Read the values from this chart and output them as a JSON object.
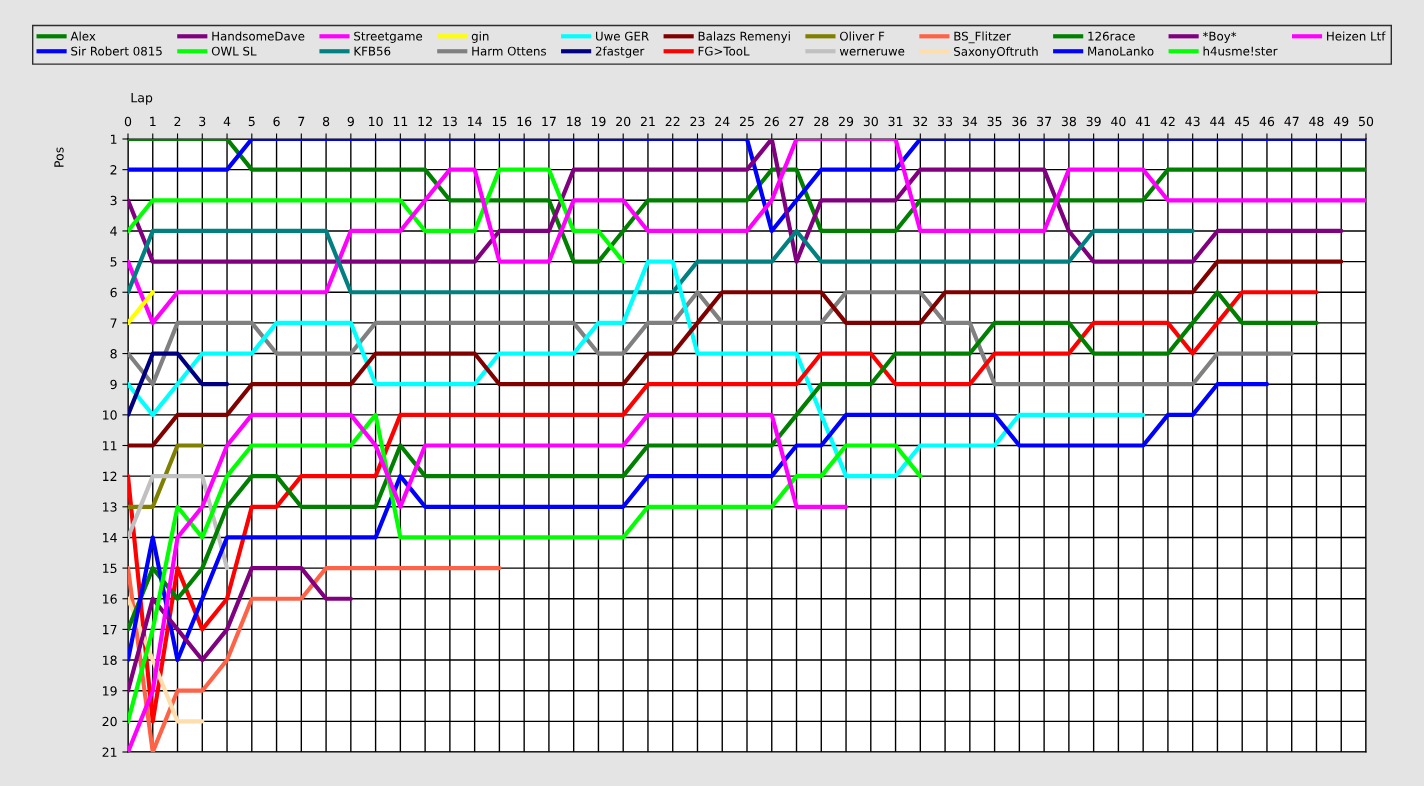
{
  "chart_data": {
    "type": "line",
    "xlabel": "Lap",
    "ylabel": "Pos",
    "x": [
      0,
      1,
      2,
      3,
      4,
      5,
      6,
      7,
      8,
      9,
      10,
      11,
      12,
      13,
      14,
      15,
      16,
      17,
      18,
      19,
      20,
      21,
      22,
      23,
      24,
      25,
      26,
      27,
      28,
      29,
      30,
      31,
      32,
      33,
      34,
      35,
      36,
      37,
      38,
      39,
      40,
      41,
      42,
      43,
      44,
      45,
      46,
      47,
      48,
      49,
      50
    ],
    "xlim": [
      0,
      50
    ],
    "xticks": [
      0,
      1,
      2,
      3,
      4,
      5,
      6,
      7,
      8,
      9,
      10,
      11,
      12,
      13,
      14,
      15,
      16,
      17,
      18,
      19,
      20,
      21,
      22,
      23,
      24,
      25,
      26,
      27,
      28,
      29,
      30,
      31,
      32,
      33,
      34,
      35,
      36,
      37,
      38,
      39,
      40,
      41,
      42,
      43,
      44,
      45,
      46,
      47,
      48,
      49,
      50
    ],
    "ylim": [
      21,
      1
    ],
    "yticks": [
      1,
      2,
      3,
      4,
      5,
      6,
      7,
      8,
      9,
      10,
      11,
      12,
      13,
      14,
      15,
      16,
      17,
      18,
      19,
      20,
      21
    ],
    "grid": true,
    "legend": "top",
    "marker": "none",
    "line_style": "solid",
    "series": [
      {
        "name": "Alex",
        "color": "#008000",
        "values": [
          1,
          1,
          1,
          1,
          1,
          2,
          2,
          2,
          2,
          2,
          2,
          2,
          2,
          3,
          3,
          3,
          3,
          3,
          5,
          5,
          4,
          3,
          3,
          3,
          3,
          3,
          2,
          2,
          4,
          4,
          4,
          4,
          3,
          3,
          3,
          3,
          3,
          3,
          3,
          3,
          3,
          3,
          2,
          2,
          2,
          2,
          2,
          2,
          2,
          2,
          2
        ]
      },
      {
        "name": "Sir Robert 0815",
        "color": "#0000ff",
        "values": [
          2,
          2,
          2,
          2,
          2,
          1,
          1,
          1,
          1,
          1,
          1,
          1,
          1,
          1,
          1,
          1,
          1,
          1,
          1,
          1,
          1,
          1,
          1,
          1,
          1,
          1,
          4,
          3,
          2,
          2,
          2,
          2,
          1,
          1,
          1,
          1,
          1,
          1,
          1,
          1,
          1,
          1,
          1,
          1,
          1,
          1,
          1,
          1,
          1,
          1,
          1
        ]
      },
      {
        "name": "HandsomeDave",
        "color": "#800080",
        "values": [
          3,
          5,
          5,
          5,
          5,
          5,
          5,
          5,
          5,
          5,
          5,
          5,
          5,
          5,
          5,
          4,
          4,
          4,
          2,
          2,
          2,
          2,
          2,
          2,
          2,
          2,
          1,
          5,
          3,
          3,
          3,
          3,
          2,
          2,
          2,
          2,
          2,
          2,
          4,
          5,
          5,
          5,
          5,
          5,
          4,
          4,
          4,
          4,
          4,
          4,
          null
        ]
      },
      {
        "name": "OWL SL",
        "color": "#00ff00",
        "values": [
          4,
          3,
          3,
          3,
          3,
          3,
          3,
          3,
          3,
          3,
          3,
          3,
          4,
          4,
          4,
          2,
          2,
          2,
          4,
          4,
          5,
          null,
          null,
          null,
          null,
          null,
          null,
          null,
          null,
          null,
          null,
          null,
          null,
          null,
          null,
          null,
          null,
          null,
          null,
          null,
          null,
          null,
          null,
          null,
          null,
          null,
          null,
          null,
          null,
          null,
          null
        ]
      },
      {
        "name": "Streetgame",
        "color": "#ff00ff",
        "values": [
          5,
          7,
          6,
          6,
          6,
          6,
          6,
          6,
          6,
          4,
          4,
          4,
          3,
          2,
          2,
          5,
          5,
          5,
          3,
          3,
          3,
          4,
          4,
          4,
          4,
          4,
          3,
          1,
          1,
          1,
          1,
          1,
          4,
          4,
          4,
          4,
          4,
          4,
          2,
          2,
          2,
          2,
          3,
          3,
          3,
          3,
          3,
          3,
          3,
          3,
          3
        ]
      },
      {
        "name": "KFB56",
        "color": "#008080",
        "values": [
          6,
          4,
          4,
          4,
          4,
          4,
          4,
          4,
          4,
          6,
          6,
          6,
          6,
          6,
          6,
          6,
          6,
          6,
          6,
          6,
          6,
          6,
          6,
          5,
          5,
          5,
          5,
          4,
          5,
          5,
          5,
          5,
          5,
          5,
          5,
          5,
          5,
          5,
          5,
          4,
          4,
          4,
          4,
          4,
          null,
          null,
          null,
          null,
          null,
          null,
          null
        ]
      },
      {
        "name": "gin",
        "color": "#ffff00",
        "values": [
          7,
          6,
          null,
          null,
          null,
          null,
          null,
          null,
          null,
          null,
          null,
          null,
          null,
          null,
          null,
          null,
          null,
          null,
          null,
          null,
          null,
          null,
          null,
          null,
          null,
          null,
          null,
          null,
          null,
          null,
          null,
          null,
          null,
          null,
          null,
          null,
          null,
          null,
          null,
          null,
          null,
          null,
          null,
          null,
          null,
          null,
          null,
          null,
          null,
          null,
          null
        ]
      },
      {
        "name": "Harm Ottens",
        "color": "#808080",
        "values": [
          8,
          9,
          7,
          7,
          7,
          7,
          8,
          8,
          8,
          8,
          7,
          7,
          7,
          7,
          7,
          7,
          7,
          7,
          7,
          8,
          8,
          7,
          7,
          6,
          7,
          7,
          7,
          7,
          7,
          6,
          6,
          6,
          6,
          7,
          7,
          9,
          9,
          9,
          9,
          9,
          9,
          9,
          9,
          9,
          8,
          8,
          8,
          8,
          null,
          null,
          null
        ]
      },
      {
        "name": "Uwe GER",
        "color": "#00ffff",
        "values": [
          9,
          10,
          9,
          8,
          8,
          8,
          7,
          7,
          7,
          7,
          9,
          9,
          9,
          9,
          9,
          8,
          8,
          8,
          8,
          7,
          7,
          5,
          5,
          8,
          8,
          8,
          8,
          8,
          10,
          12,
          12,
          12,
          11,
          11,
          11,
          11,
          10,
          10,
          10,
          10,
          10,
          10,
          null,
          null,
          null,
          null,
          null,
          null,
          null,
          null,
          null
        ]
      },
      {
        "name": "2fastger",
        "color": "#000080",
        "values": [
          10,
          8,
          8,
          9,
          9,
          null,
          null,
          null,
          null,
          null,
          null,
          null,
          null,
          null,
          null,
          null,
          null,
          null,
          null,
          null,
          null,
          null,
          null,
          null,
          null,
          null,
          null,
          null,
          null,
          null,
          null,
          null,
          null,
          null,
          null,
          null,
          null,
          null,
          null,
          null,
          null,
          null,
          null,
          null,
          null,
          null,
          null,
          null,
          null,
          null,
          null
        ]
      },
      {
        "name": "Balazs Remenyi",
        "color": "#800000",
        "values": [
          11,
          11,
          10,
          10,
          10,
          9,
          9,
          9,
          9,
          9,
          8,
          8,
          8,
          8,
          8,
          9,
          9,
          9,
          9,
          9,
          9,
          8,
          8,
          7,
          6,
          6,
          6,
          6,
          6,
          7,
          7,
          7,
          7,
          6,
          6,
          6,
          6,
          6,
          6,
          6,
          6,
          6,
          6,
          6,
          5,
          5,
          5,
          5,
          5,
          5,
          null
        ]
      },
      {
        "name": "FG>TooL",
        "color": "#ff0000",
        "values": [
          12,
          20,
          15,
          17,
          16,
          13,
          13,
          12,
          12,
          12,
          12,
          10,
          10,
          10,
          10,
          10,
          10,
          10,
          10,
          10,
          10,
          9,
          9,
          9,
          9,
          9,
          9,
          9,
          8,
          8,
          8,
          9,
          9,
          9,
          9,
          8,
          8,
          8,
          8,
          7,
          7,
          7,
          7,
          8,
          7,
          6,
          6,
          6,
          6,
          null,
          null
        ]
      },
      {
        "name": "Oliver F",
        "color": "#808000",
        "values": [
          13,
          13,
          11,
          11,
          null,
          null,
          null,
          null,
          null,
          null,
          null,
          null,
          null,
          null,
          null,
          null,
          null,
          null,
          null,
          null,
          null,
          null,
          null,
          null,
          null,
          null,
          null,
          null,
          null,
          null,
          null,
          null,
          null,
          null,
          null,
          null,
          null,
          null,
          null,
          null,
          null,
          null,
          null,
          null,
          null,
          null,
          null,
          null,
          null,
          null,
          null
        ]
      },
      {
        "name": "werneruwe",
        "color": "#c0c0c0",
        "values": [
          14,
          12,
          12,
          12,
          15,
          null,
          null,
          null,
          null,
          null,
          null,
          null,
          null,
          null,
          null,
          null,
          null,
          null,
          null,
          null,
          null,
          null,
          null,
          null,
          null,
          null,
          null,
          null,
          null,
          null,
          null,
          null,
          null,
          null,
          null,
          null,
          null,
          null,
          null,
          null,
          null,
          null,
          null,
          null,
          null,
          null,
          null,
          null,
          null,
          null,
          null
        ]
      },
      {
        "name": "BS_Flitzer",
        "color": "#ff6347",
        "values": [
          15,
          21,
          19,
          19,
          18,
          16,
          16,
          16,
          15,
          15,
          15,
          15,
          15,
          15,
          15,
          15,
          null,
          null,
          null,
          null,
          null,
          null,
          null,
          null,
          null,
          null,
          null,
          null,
          null,
          null,
          null,
          null,
          null,
          null,
          null,
          null,
          null,
          null,
          null,
          null,
          null,
          null,
          null,
          null,
          null,
          null,
          null,
          null,
          null,
          null,
          null
        ]
      },
      {
        "name": "SaxonyOftruth",
        "color": "#ffdead",
        "values": [
          16,
          18,
          20,
          20,
          null,
          null,
          null,
          null,
          null,
          null,
          null,
          null,
          null,
          null,
          null,
          null,
          null,
          null,
          null,
          null,
          null,
          null,
          null,
          null,
          null,
          null,
          null,
          null,
          null,
          null,
          null,
          null,
          null,
          null,
          null,
          null,
          null,
          null,
          null,
          null,
          null,
          null,
          null,
          null,
          null,
          null,
          null,
          null,
          null,
          null,
          null
        ]
      },
      {
        "name": "126race",
        "color": "#008000",
        "values": [
          17,
          15,
          16,
          15,
          13,
          12,
          12,
          13,
          13,
          13,
          13,
          11,
          12,
          12,
          12,
          12,
          12,
          12,
          12,
          12,
          12,
          11,
          11,
          11,
          11,
          11,
          11,
          10,
          9,
          9,
          9,
          8,
          8,
          8,
          8,
          7,
          7,
          7,
          7,
          8,
          8,
          8,
          8,
          7,
          6,
          7,
          7,
          7,
          7,
          null,
          null
        ]
      },
      {
        "name": "ManoLanko",
        "color": "#0000ff",
        "values": [
          18,
          14,
          18,
          16,
          14,
          14,
          14,
          14,
          14,
          14,
          14,
          12,
          13,
          13,
          13,
          13,
          13,
          13,
          13,
          13,
          13,
          12,
          12,
          12,
          12,
          12,
          12,
          11,
          11,
          10,
          10,
          10,
          10,
          10,
          10,
          10,
          11,
          11,
          11,
          11,
          11,
          11,
          10,
          10,
          9,
          9,
          9,
          null,
          null,
          null,
          null
        ]
      },
      {
        "name": "*Boy*",
        "color": "#800080",
        "values": [
          19,
          16,
          17,
          18,
          17,
          15,
          15,
          15,
          16,
          16,
          null,
          null,
          null,
          null,
          null,
          null,
          null,
          null,
          null,
          null,
          null,
          null,
          null,
          null,
          null,
          null,
          null,
          null,
          null,
          null,
          null,
          null,
          null,
          null,
          null,
          null,
          null,
          null,
          null,
          null,
          null,
          null,
          null,
          null,
          null,
          null,
          null,
          null,
          null,
          null,
          null
        ]
      },
      {
        "name": "h4usme!ster",
        "color": "#00ff00",
        "values": [
          20,
          17,
          13,
          14,
          12,
          11,
          11,
          11,
          11,
          11,
          10,
          14,
          14,
          14,
          14,
          14,
          14,
          14,
          14,
          14,
          14,
          13,
          13,
          13,
          13,
          13,
          13,
          12,
          12,
          11,
          11,
          11,
          12,
          null,
          null,
          null,
          null,
          null,
          null,
          null,
          null,
          null,
          null,
          null,
          null,
          null,
          null,
          null,
          null,
          null,
          null
        ]
      },
      {
        "name": "Heizen Ltf",
        "color": "#ff00ff",
        "values": [
          21,
          19,
          14,
          13,
          11,
          10,
          10,
          10,
          10,
          10,
          11,
          13,
          11,
          11,
          11,
          11,
          11,
          11,
          11,
          11,
          11,
          10,
          10,
          10,
          10,
          10,
          10,
          13,
          13,
          13,
          null,
          null,
          null,
          null,
          null,
          null,
          null,
          null,
          null,
          null,
          null,
          null,
          null,
          null,
          null,
          null,
          null,
          null,
          null,
          null,
          null
        ]
      }
    ]
  }
}
